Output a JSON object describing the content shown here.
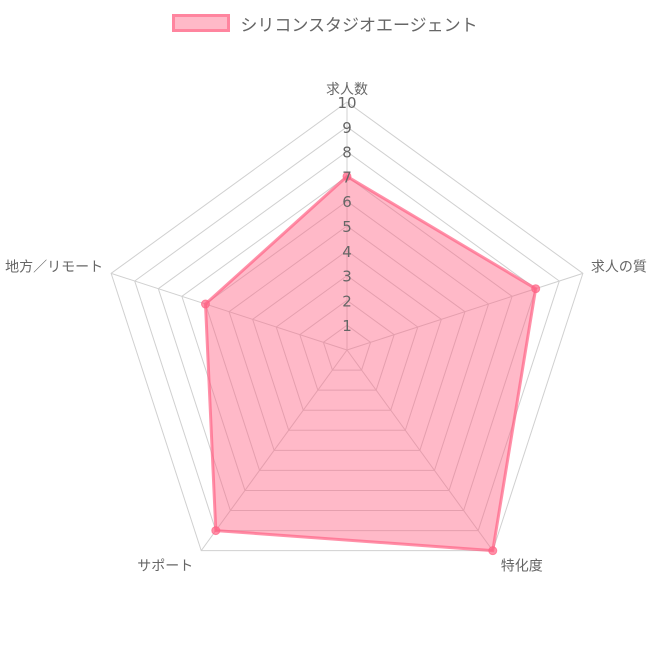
{
  "chart_data": {
    "type": "radar",
    "categories": [
      "求人数",
      "求人の質",
      "特化度",
      "サポート",
      "地方／リモート"
    ],
    "series": [
      {
        "name": "シリコンスタジオエージェント",
        "values": [
          7,
          8,
          10,
          9,
          6
        ]
      }
    ],
    "rlim": [
      0,
      10
    ],
    "ticks": [
      "1",
      "2",
      "3",
      "4",
      "5",
      "6",
      "7",
      "8",
      "9",
      "10"
    ],
    "grid": true,
    "legend": "top-center"
  },
  "colors": {
    "fill": "rgba(255,99,132,0.45)",
    "stroke": "rgba(255,99,132,0.7)",
    "grid": "#d0d0d0",
    "text": "#666666"
  }
}
